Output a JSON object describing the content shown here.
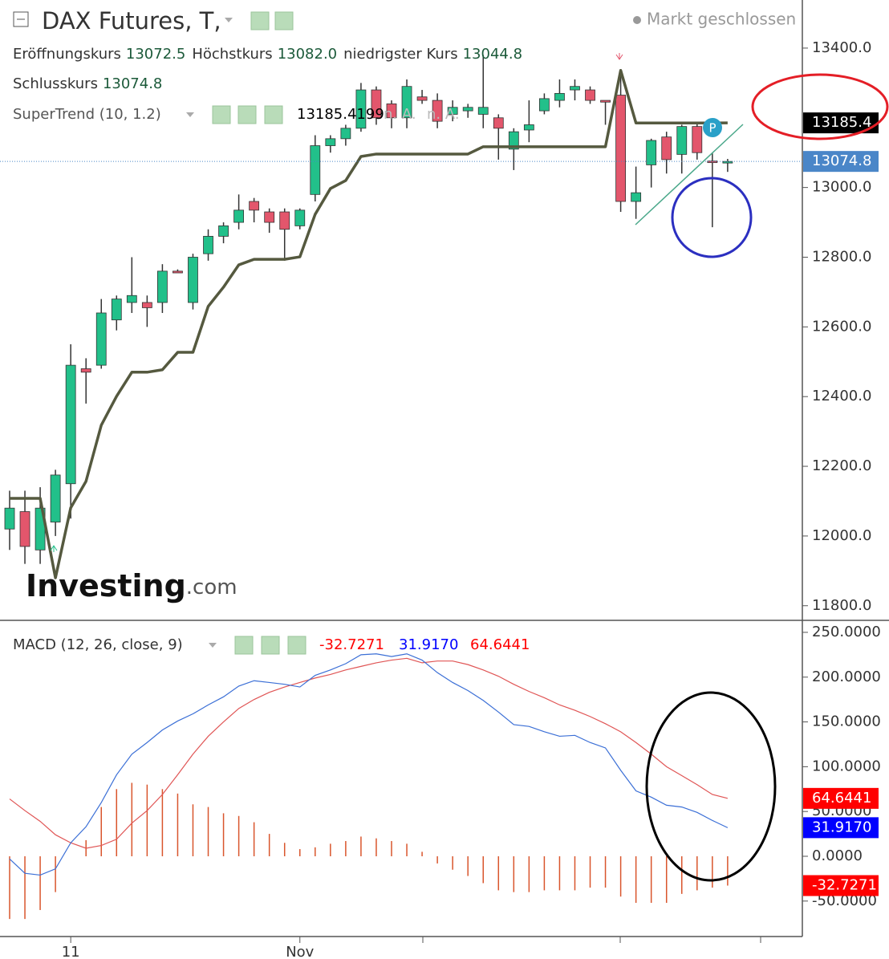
{
  "chart_data": [
    {
      "type": "candlestick",
      "title": "DAX Futures, T,",
      "status": "Markt geschlossen",
      "ohlc_legend": [
        {
          "name": "Eröffnungskurs",
          "value": "13072.5"
        },
        {
          "name": "Höchstkurs",
          "value": "13082.0"
        },
        {
          "name": "niedrigster Kurs",
          "value": "13044.8"
        },
        {
          "name": "Schlusskurs",
          "value": "13074.8"
        }
      ],
      "indicator": "SuperTrend (10, 1.2)",
      "indicator_na": [
        "n. A.",
        "n. A."
      ],
      "logo": {
        "main": "Investing",
        "suffix": ".com"
      },
      "categories": [
        null,
        null,
        null,
        null,
        "11",
        null,
        null,
        null,
        null,
        null,
        null,
        null,
        null,
        null,
        null,
        null,
        null,
        null,
        null,
        "Nov",
        null,
        null,
        null,
        null,
        null,
        null,
        null,
        null,
        null,
        null,
        null,
        null,
        null,
        null,
        null,
        null,
        null,
        null,
        null,
        null,
        null,
        null,
        null,
        null,
        null,
        null,
        null,
        null
      ],
      "open": [
        12020,
        12070,
        11960,
        12040,
        12150,
        12480,
        12490,
        12620,
        12670,
        12670,
        12670,
        12760,
        12670,
        12810,
        12860,
        12900,
        12960,
        12930,
        12930,
        12890,
        12980,
        13120,
        13140,
        13170,
        13280,
        13240,
        13200,
        13260,
        13250,
        13210,
        13220,
        13210,
        13200,
        13110,
        13165,
        13220,
        13250,
        13280,
        13280,
        13250,
        13265,
        12960,
        13065,
        13145,
        13095,
        13175,
        13076,
        13072.5
      ],
      "high": [
        12130,
        12130,
        12140,
        12190,
        12550,
        12510,
        12680,
        12690,
        12800,
        12690,
        12780,
        12765,
        12810,
        12880,
        12900,
        12980,
        12970,
        12940,
        12940,
        12940,
        13150,
        13150,
        13180,
        13300,
        13290,
        13250,
        13310,
        13280,
        13270,
        13250,
        13240,
        13380,
        13210,
        13170,
        13250,
        13270,
        13310,
        13310,
        13290,
        13250,
        13340,
        13060,
        13140,
        13160,
        13180,
        13185,
        13100,
        13082
      ],
      "low": [
        11960,
        11920,
        11920,
        12000,
        12050,
        12380,
        12480,
        12590,
        12640,
        12600,
        12640,
        12755,
        12650,
        12790,
        12840,
        12880,
        12900,
        12870,
        12790,
        12880,
        12960,
        13100,
        13120,
        13160,
        13180,
        13170,
        13170,
        13240,
        13170,
        13190,
        13200,
        13170,
        13080,
        13050,
        13130,
        13210,
        13230,
        13250,
        13240,
        13180,
        12930,
        12910,
        13000,
        13040,
        13040,
        13080,
        12886,
        13044.8
      ],
      "close": [
        12080,
        11970,
        12080,
        12175,
        12490,
        12470,
        12640,
        12680,
        12690,
        12655,
        12760,
        12755,
        12800,
        12860,
        12890,
        12935,
        12935,
        12900,
        12880,
        12935,
        13120,
        13140,
        13170,
        13280,
        13200,
        13200,
        13290,
        13250,
        13190,
        13230,
        13230,
        13230,
        13170,
        13160,
        13180,
        13255,
        13270,
        13290,
        13250,
        13245,
        12960,
        12985,
        13135,
        13080,
        13175,
        13100,
        13075,
        13074.8
      ],
      "up_color": "#22c08a",
      "down_color": "#e3566c",
      "wick_color": "#333333",
      "supertrend": {
        "color": "#55593f",
        "values": [
          12108,
          12108,
          12108,
          11880,
          12081,
          12157,
          12318,
          12401,
          12470,
          12470,
          12477,
          12527,
          12527,
          12659,
          12714,
          12778,
          12794,
          12794,
          12794,
          12801,
          12923,
          12997,
          13020,
          13089,
          13096,
          13096,
          13096,
          13096,
          13096,
          13096,
          13096,
          13117,
          13117,
          13117,
          13117,
          13117,
          13117,
          13117,
          13117,
          13117,
          13336,
          13185,
          13185,
          13185,
          13185,
          13185,
          13185,
          13185.4199
        ]
      },
      "ylim": [
        11758,
        13538
      ],
      "yticks": [
        {
          "value": 11800,
          "label": "11800.0"
        },
        {
          "value": 12000,
          "label": "12000.0"
        },
        {
          "value": 12200,
          "label": "12200.0"
        },
        {
          "value": 12400,
          "label": "12400.0"
        },
        {
          "value": 12600,
          "label": "12600.0"
        },
        {
          "value": 12800,
          "label": "12800.0"
        },
        {
          "value": 13000,
          "label": "13000.0"
        },
        {
          "value": 13400,
          "label": "13400.0"
        }
      ],
      "price_tags": [
        {
          "value": 13185.4,
          "color": "#000000"
        },
        {
          "value": 13074.8,
          "color": "#4a86c8",
          "line": true
        }
      ]
    },
    {
      "type": "macd",
      "title": "MACD (12, 26, close, 9)",
      "histogram": {
        "color": "#d9552c",
        "values": [
          -70,
          -70,
          -60,
          -40,
          0,
          18,
          55,
          75,
          82,
          80,
          75,
          70,
          58,
          55,
          48,
          45,
          38,
          25,
          15,
          8,
          10,
          14,
          17,
          22,
          20,
          17,
          14,
          5,
          -8,
          -15,
          -22,
          -30,
          -38,
          -40,
          -40,
          -38,
          -38,
          -38,
          -35,
          -35,
          -45,
          -52,
          -52,
          -52,
          -42,
          -38,
          -35,
          -32.7271
        ]
      },
      "macd": {
        "color": "#3b6fd6",
        "values": [
          -3,
          -19,
          -21,
          -14,
          15,
          33,
          60,
          91,
          114,
          127,
          141,
          151,
          159,
          169,
          178,
          190,
          196,
          194,
          192,
          189,
          202,
          208,
          215,
          225,
          226,
          223,
          226,
          219,
          205,
          194,
          185,
          174,
          161,
          147,
          145,
          139,
          134,
          135,
          127,
          121,
          96,
          73,
          66,
          57,
          55,
          49,
          40,
          31.917
        ]
      },
      "signal": {
        "color": "#e05555",
        "values": [
          64,
          51,
          39,
          24,
          15,
          9,
          12,
          19,
          37,
          51,
          69,
          91,
          114,
          134,
          150,
          165,
          175,
          183,
          189,
          194,
          199,
          203,
          208,
          212,
          216,
          219,
          221,
          216,
          218,
          218,
          214,
          208,
          201,
          192,
          184,
          177,
          169,
          163,
          156,
          148,
          139,
          127,
          114,
          100,
          90,
          80,
          69,
          64.6441
        ]
      },
      "ylim": [
        -89.6,
        263.4
      ],
      "yticks": [
        {
          "value": -50,
          "label": "-50.0000"
        },
        {
          "value": 0,
          "label": "0.0000"
        },
        {
          "value": 50,
          "label": "50.0000"
        },
        {
          "value": 100,
          "label": "100.0000"
        },
        {
          "value": 150,
          "label": "150.0000"
        },
        {
          "value": 200,
          "label": "200.0000"
        },
        {
          "value": 250,
          "label": "250.0000"
        }
      ],
      "tags": [
        {
          "value": 64.6441,
          "color": "#ff0000"
        },
        {
          "value": 31.917,
          "label": "31.9170",
          "color": "#0000ff"
        },
        {
          "value": -32.7271,
          "color": "#ff0000"
        }
      ]
    }
  ]
}
